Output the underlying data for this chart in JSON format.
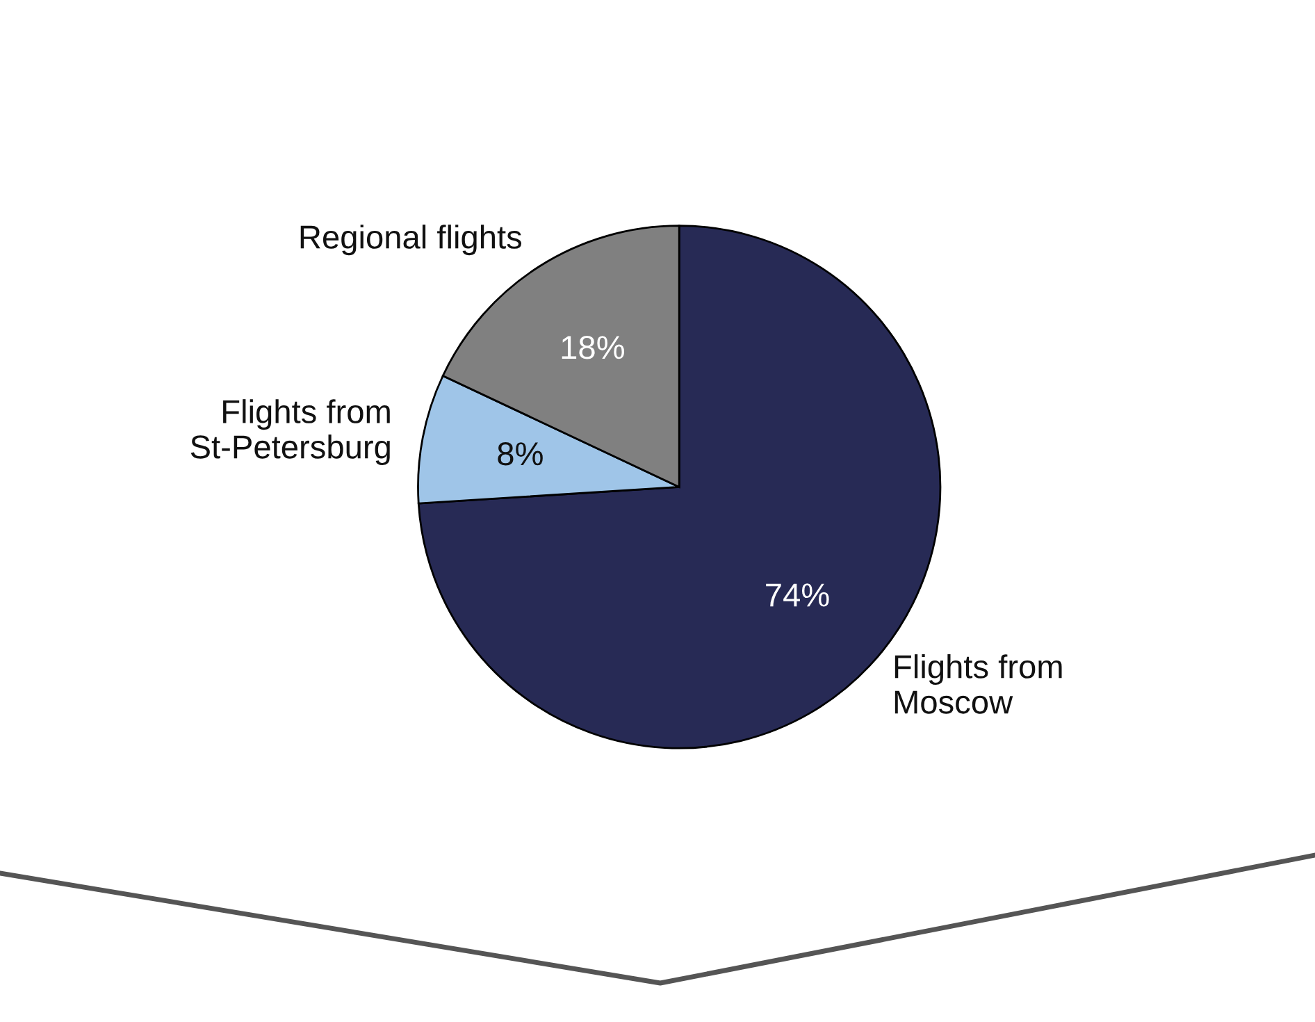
{
  "chart_data": {
    "type": "pie",
    "categories": [
      "Flights from\nMoscow",
      "Flights from\nSt-Petersburg",
      "Regional flights"
    ],
    "values": [
      74,
      8,
      18
    ],
    "value_labels": [
      "74%",
      "8%",
      "18%"
    ],
    "colors": [
      "#272a55",
      "#9fc5e8",
      "#808080"
    ],
    "legend": false
  }
}
